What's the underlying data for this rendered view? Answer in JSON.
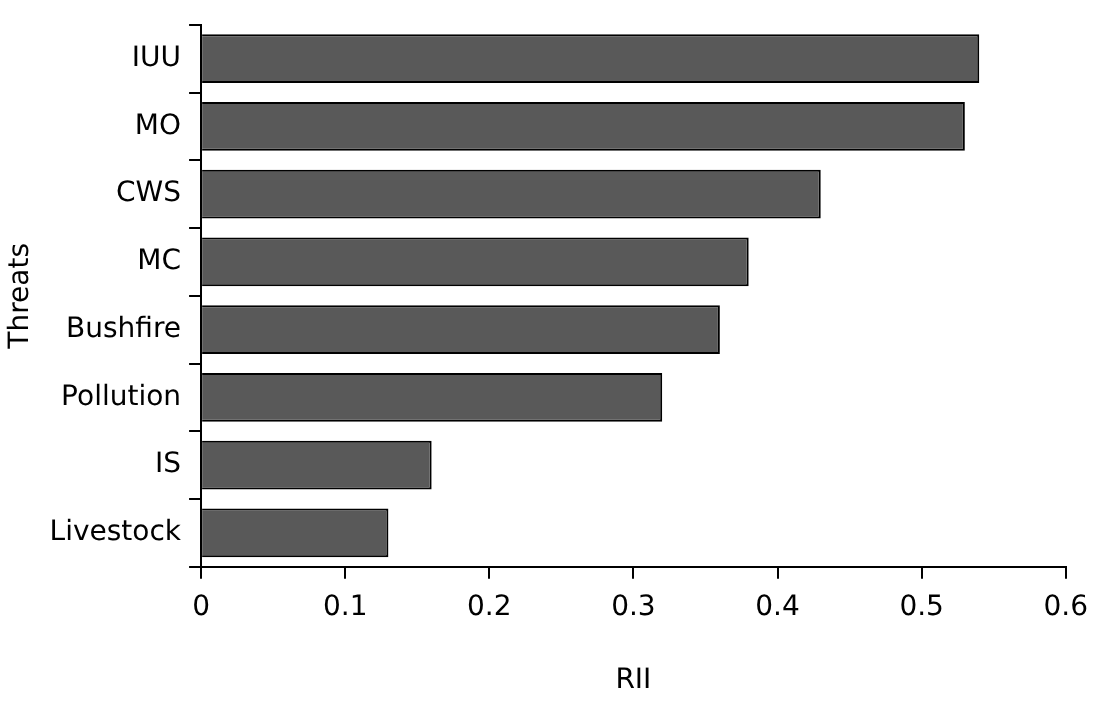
{
  "chart_data": {
    "type": "bar",
    "orientation": "horizontal",
    "xlabel": "RII",
    "ylabel": "Threats",
    "categories": [
      "IUU",
      "MO",
      "CWS",
      "MC",
      "Bushfire",
      "Pollution",
      "IS",
      "Livestock"
    ],
    "values": [
      0.54,
      0.53,
      0.43,
      0.38,
      0.36,
      0.32,
      0.16,
      0.13
    ],
    "color": "#595959",
    "xlim": [
      0,
      0.6
    ],
    "xticks": [
      0,
      0.1,
      0.2,
      0.3,
      0.4,
      0.5,
      0.6
    ],
    "grid": false,
    "legend": false
  }
}
